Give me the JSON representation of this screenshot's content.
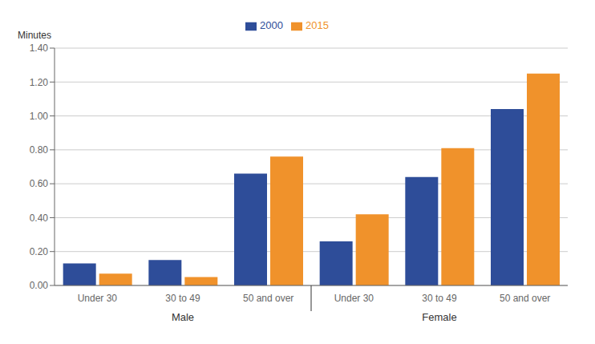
{
  "chart_data": {
    "type": "bar",
    "categories": [
      "Under 30",
      "30 to 49",
      "50 and over",
      "Under 30",
      "30 to 49",
      "50 and over"
    ],
    "category_groups": [
      "Male",
      "Male",
      "Male",
      "Female",
      "Female",
      "Female"
    ],
    "series": [
      {
        "name": "2000",
        "color": "#2E4D99",
        "values": [
          0.13,
          0.15,
          0.66,
          0.26,
          0.64,
          1.04
        ]
      },
      {
        "name": "2015",
        "color": "#F0922B",
        "values": [
          0.07,
          0.05,
          0.76,
          0.42,
          0.81,
          1.25
        ]
      }
    ],
    "ylabel": "Minutes",
    "ylim": [
      0,
      1.4
    ],
    "yticks": [
      {
        "value": 0.0,
        "label": "0.00"
      },
      {
        "value": 0.2,
        "label": "0.20"
      },
      {
        "value": 0.4,
        "label": "0.40"
      },
      {
        "value": 0.6,
        "label": "0.60"
      },
      {
        "value": 0.8,
        "label": "0.80"
      },
      {
        "value": 1.0,
        "label": "1.00"
      },
      {
        "value": 1.2,
        "label": "1.20"
      },
      {
        "value": 1.4,
        "label": "1.40"
      }
    ],
    "grid": true,
    "legend": "top"
  }
}
